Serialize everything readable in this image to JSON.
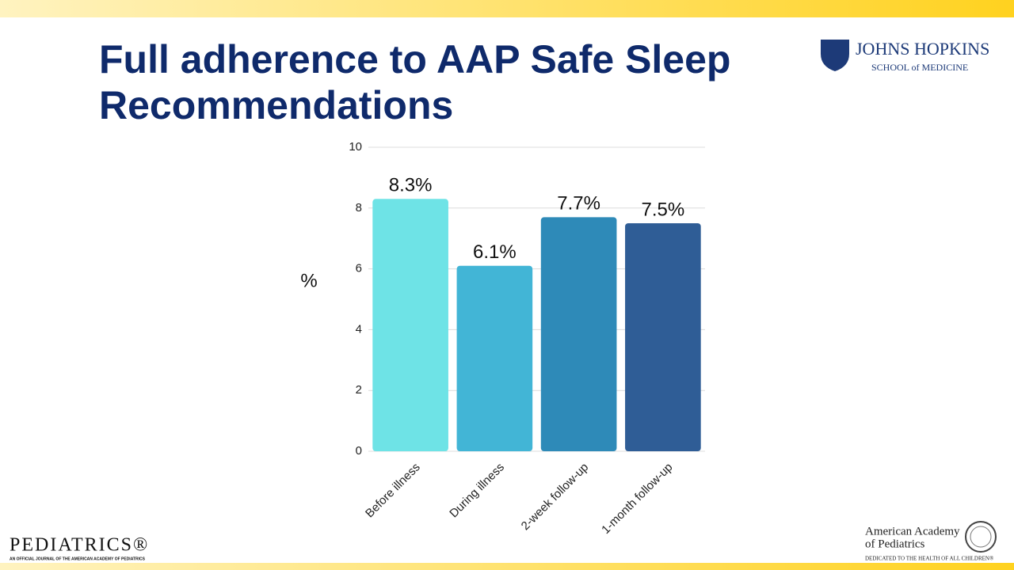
{
  "chart_data": {
    "type": "bar",
    "title": "Full adherence to AAP Safe Sleep Recommendations",
    "y_label": "%",
    "categories": [
      "Before illness",
      "During illness",
      "2-week follow-up",
      "1-month follow-up"
    ],
    "values": [
      8.3,
      6.1,
      7.7,
      7.5
    ],
    "value_labels": [
      "8.3%",
      "6.1%",
      "7.7%",
      "7.5%"
    ],
    "colors": [
      "#6ee3e6",
      "#42b5d6",
      "#2e8ab8",
      "#2f5d96"
    ],
    "ylim": [
      0,
      10
    ],
    "yticks": [
      0,
      2,
      4,
      6,
      8,
      10
    ],
    "grid": true
  },
  "logos": {
    "hopkins_name": "JOHNS HOPKINS",
    "hopkins_school": "SCHOOL of MEDICINE",
    "pediatrics": "PEDIATRICS®",
    "pediatrics_sub": "AN OFFICIAL JOURNAL OF THE AMERICAN ACADEMY OF PEDIATRICS",
    "aap_line1": "American Academy",
    "aap_line2": "of Pediatrics",
    "aap_tagline": "DEDICATED TO THE HEALTH OF ALL CHILDREN®"
  }
}
